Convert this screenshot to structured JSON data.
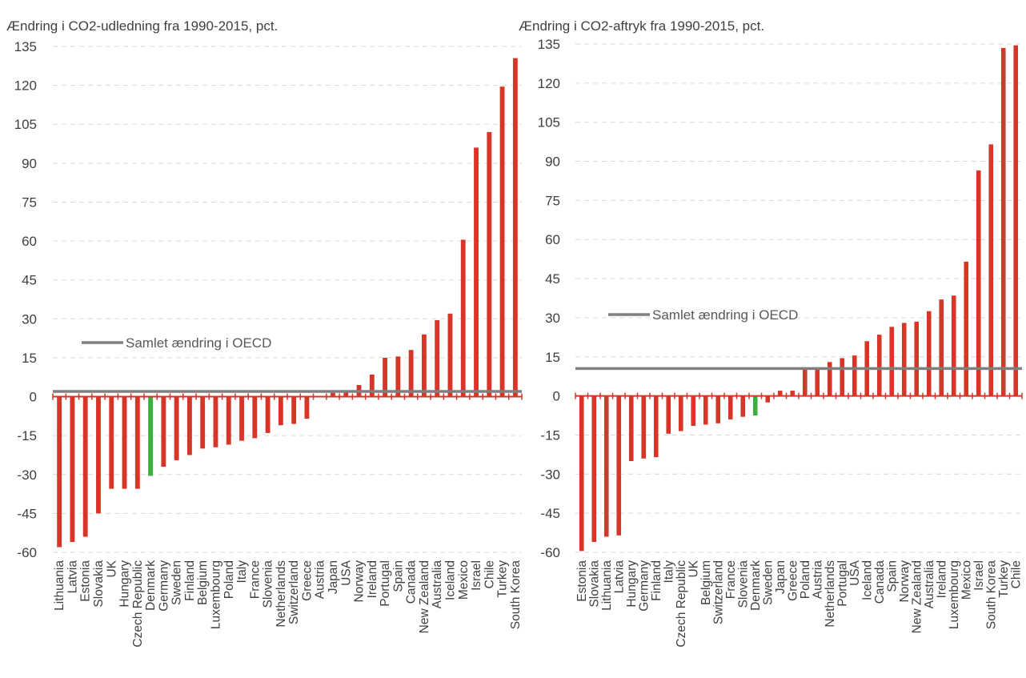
{
  "colors": {
    "bar": "#d73527",
    "highlight_bar": "#3cb03c",
    "reference_line": "#7f7f7f",
    "zero_axis": "#d73527",
    "grid": "#d9d9d9",
    "text": "#404040"
  },
  "chart_data": [
    {
      "type": "bar",
      "title": "Ændring i CO2-udledning fra 1990-2015, pct.",
      "xlabel": "",
      "ylabel": "",
      "ylim": [
        -60,
        135
      ],
      "yticks": [
        135,
        120,
        105,
        90,
        75,
        60,
        45,
        30,
        15,
        0,
        -15,
        -30,
        -45,
        -60
      ],
      "grid": true,
      "categories": [
        "Lithuania",
        "Latvia",
        "Estonia",
        "Slovakia",
        "UK",
        "Hungary",
        "Czech Republic",
        "Denmark",
        "Germany",
        "Sweden",
        "Finland",
        "Belgium",
        "Luxembourg",
        "Poland",
        "Italy",
        "France",
        "Slovenia",
        "Netherlands",
        "Switzerland",
        "Greece",
        "Austria",
        "Japan",
        "USA",
        "Norway",
        "Ireland",
        "Portugal",
        "Spain",
        "Canada",
        "New Zealand",
        "Australia",
        "Iceland",
        "Mexico",
        "Israel",
        "Chile",
        "Turkey",
        "South Korea"
      ],
      "values": [
        -58,
        -56,
        -54,
        -45,
        -35.5,
        -35.5,
        -35.5,
        -30.5,
        -27,
        -24.5,
        -22.5,
        -20,
        -19.5,
        -18.5,
        -17,
        -16,
        -14,
        -11,
        -10.5,
        -8.5,
        0,
        1.5,
        2.5,
        4.5,
        8.5,
        15,
        15.5,
        18,
        24,
        29.5,
        32,
        60.5,
        96,
        102,
        119.5,
        130.5
      ],
      "highlight": [
        "Denmark"
      ],
      "reference_line": {
        "label": "Samlet ændring i OECD",
        "value": 2
      }
    },
    {
      "type": "bar",
      "title": "Ændring i CO2-aftryk fra 1990-2015, pct.",
      "xlabel": "",
      "ylabel": "",
      "ylim": [
        -60,
        135
      ],
      "yticks": [
        135,
        120,
        105,
        90,
        75,
        60,
        45,
        30,
        15,
        0,
        -15,
        -30,
        -45,
        -60
      ],
      "grid": true,
      "categories": [
        "Estonia",
        "Slovakia",
        "Lithuania",
        "Latvia",
        "Hungary",
        "Germany",
        "Finland",
        "Italy",
        "Czech Republic",
        "UK",
        "Belgium",
        "Switzerland",
        "France",
        "Slovenia",
        "Denmark",
        "Sweden",
        "Japan",
        "Greece",
        "Poland",
        "Austria",
        "Netherlands",
        "Portugal",
        "USA",
        "Iceland",
        "Canada",
        "Spain",
        "Norway",
        "New Zealand",
        "Australia",
        "Ireland",
        "Luxembourg",
        "Mexico",
        "Israel",
        "South Korea",
        "Turkey",
        "Chile"
      ],
      "values": [
        -59.5,
        -56,
        -54,
        -53.5,
        -25,
        -24,
        -23.5,
        -14.5,
        -13.5,
        -11.5,
        -11,
        -10.5,
        -9,
        -8,
        -7.5,
        -2.5,
        2,
        2,
        10,
        10.5,
        13,
        14.5,
        15.5,
        21,
        23.5,
        26.5,
        28,
        28.5,
        32.5,
        37,
        38.5,
        51.5,
        86.5,
        96.5,
        133.5,
        134.5
      ],
      "highlight": [
        "Denmark"
      ],
      "reference_line": {
        "label": "Samlet ændring i OECD",
        "value": 10.5
      }
    }
  ]
}
